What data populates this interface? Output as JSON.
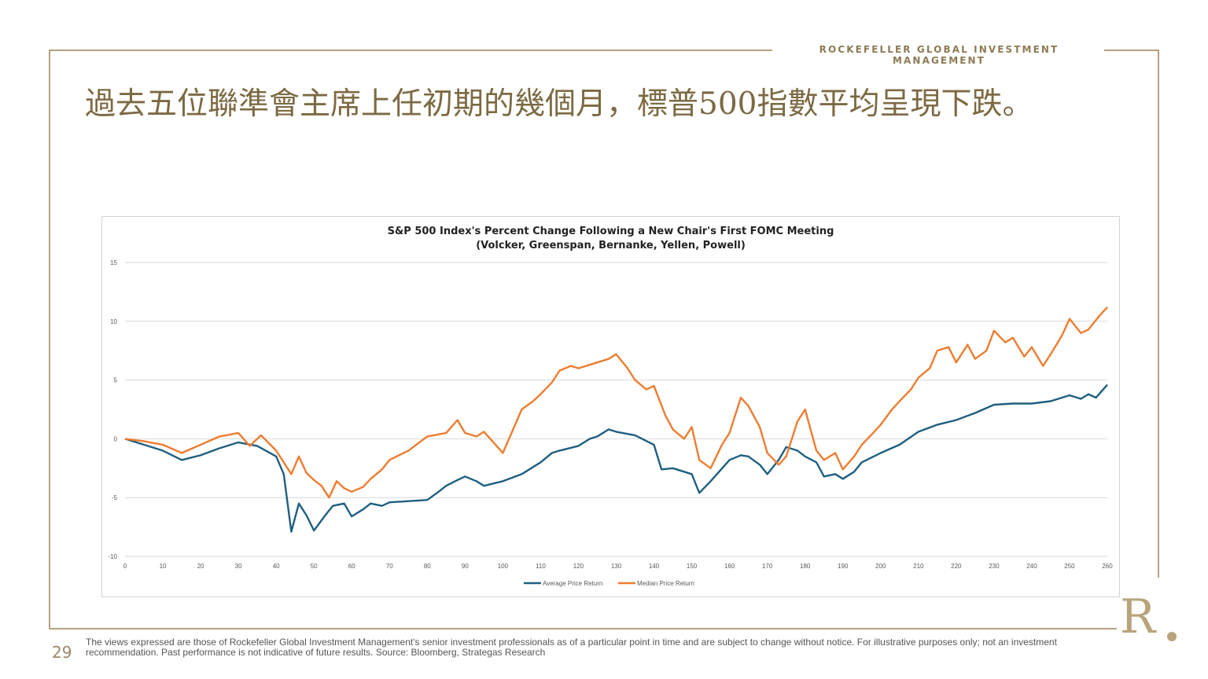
{
  "header": {
    "brand": "ROCKEFELLER GLOBAL INVESTMENT MANAGEMENT",
    "title": "過去五位聯準會主席上任初期的幾個月，標普500指數平均呈現下跌。"
  },
  "chart_data": {
    "type": "line",
    "title": "S&P 500 Index's Percent Change Following a New Chair's First FOMC Meeting",
    "subtitle": "(Volcker, Greenspan, Bernanke, Yellen, Powell)",
    "xlabel": "",
    "ylabel": "",
    "xlim": [
      0,
      260
    ],
    "ylim": [
      -10,
      15
    ],
    "xticks": [
      0,
      10,
      20,
      30,
      40,
      50,
      60,
      70,
      80,
      90,
      100,
      110,
      120,
      130,
      140,
      150,
      160,
      170,
      180,
      190,
      200,
      210,
      220,
      230,
      240,
      250,
      260
    ],
    "yticks": [
      -10,
      -5,
      0,
      5,
      10,
      15
    ],
    "grid": true,
    "legend": "bottom",
    "series": [
      {
        "name": "Average Price Return",
        "color": "#1f5f80",
        "x": [
          0,
          5,
          10,
          15,
          20,
          25,
          30,
          35,
          40,
          42,
          44,
          46,
          48,
          50,
          53,
          55,
          58,
          60,
          63,
          65,
          68,
          70,
          75,
          80,
          83,
          85,
          88,
          90,
          93,
          95,
          100,
          105,
          110,
          113,
          115,
          120,
          123,
          125,
          128,
          130,
          135,
          140,
          142,
          145,
          150,
          152,
          155,
          160,
          163,
          165,
          168,
          170,
          173,
          175,
          178,
          180,
          183,
          185,
          188,
          190,
          193,
          195,
          200,
          205,
          210,
          215,
          220,
          225,
          230,
          235,
          240,
          245,
          250,
          253,
          255,
          257,
          260
        ],
        "values": [
          0,
          -0.5,
          -1.0,
          -1.8,
          -1.4,
          -0.8,
          -0.3,
          -0.6,
          -1.5,
          -3.0,
          -7.9,
          -5.5,
          -6.5,
          -7.8,
          -6.5,
          -5.7,
          -5.5,
          -6.6,
          -6.0,
          -5.5,
          -5.7,
          -5.4,
          -5.3,
          -5.2,
          -4.5,
          -4.0,
          -3.5,
          -3.2,
          -3.6,
          -4.0,
          -3.6,
          -3.0,
          -2.0,
          -1.2,
          -1.0,
          -0.6,
          0.0,
          0.2,
          0.8,
          0.6,
          0.3,
          -0.5,
          -2.6,
          -2.5,
          -3.0,
          -4.6,
          -3.6,
          -1.8,
          -1.4,
          -1.5,
          -2.2,
          -3.0,
          -1.8,
          -0.7,
          -1.0,
          -1.5,
          -2.0,
          -3.2,
          -3.0,
          -3.4,
          -2.8,
          -2.0,
          -1.2,
          -0.5,
          0.6,
          1.2,
          1.6,
          2.2,
          2.9,
          3.0,
          3.0,
          3.2,
          3.7,
          3.4,
          3.8,
          3.5,
          4.6
        ]
      },
      {
        "name": "Median Price Return",
        "color": "#ed7d31",
        "x": [
          0,
          5,
          10,
          15,
          20,
          25,
          30,
          33,
          36,
          40,
          42,
          44,
          46,
          48,
          50,
          52,
          54,
          56,
          58,
          60,
          63,
          65,
          68,
          70,
          75,
          80,
          85,
          88,
          90,
          93,
          95,
          100,
          105,
          108,
          110,
          113,
          115,
          118,
          120,
          123,
          125,
          128,
          130,
          133,
          135,
          138,
          140,
          143,
          145,
          148,
          150,
          152,
          155,
          158,
          160,
          163,
          165,
          168,
          170,
          173,
          175,
          178,
          180,
          183,
          185,
          188,
          190,
          193,
          195,
          198,
          200,
          203,
          205,
          208,
          210,
          213,
          215,
          218,
          220,
          223,
          225,
          228,
          230,
          233,
          235,
          238,
          240,
          243,
          245,
          248,
          250,
          253,
          255,
          258,
          260
        ],
        "values": [
          0,
          -0.2,
          -0.5,
          -1.2,
          -0.5,
          0.2,
          0.5,
          -0.6,
          0.3,
          -1.0,
          -2.0,
          -3.0,
          -1.5,
          -2.9,
          -3.5,
          -4.0,
          -5.0,
          -3.6,
          -4.2,
          -4.5,
          -4.1,
          -3.4,
          -2.6,
          -1.8,
          -1.0,
          0.2,
          0.5,
          1.6,
          0.5,
          0.2,
          0.6,
          -1.2,
          2.5,
          3.2,
          3.8,
          4.8,
          5.8,
          6.2,
          6.0,
          6.3,
          6.5,
          6.8,
          7.2,
          6.0,
          5.0,
          4.2,
          4.5,
          2.0,
          0.8,
          0.0,
          1.0,
          -1.8,
          -2.5,
          -0.5,
          0.5,
          3.5,
          2.8,
          1.0,
          -1.2,
          -2.2,
          -1.5,
          1.5,
          2.5,
          -1.0,
          -1.8,
          -1.2,
          -2.6,
          -1.5,
          -0.5,
          0.5,
          1.2,
          2.5,
          3.2,
          4.2,
          5.2,
          6.0,
          7.5,
          7.8,
          6.5,
          8.0,
          6.8,
          7.5,
          9.2,
          8.2,
          8.6,
          7.0,
          7.8,
          6.2,
          7.2,
          8.8,
          10.2,
          9.0,
          9.3,
          10.5,
          11.2
        ]
      }
    ]
  },
  "footer": {
    "page_number": "29",
    "disclaimer": "The views expressed are those of Rockefeller Global Investment Management's senior investment professionals as of a particular point in time and are subject to change without notice. For illustrative purposes only; not an investment recommendation. Past performance is not indicative of future results. Source: Bloomberg, Strategas Research",
    "logo_text": "R"
  }
}
